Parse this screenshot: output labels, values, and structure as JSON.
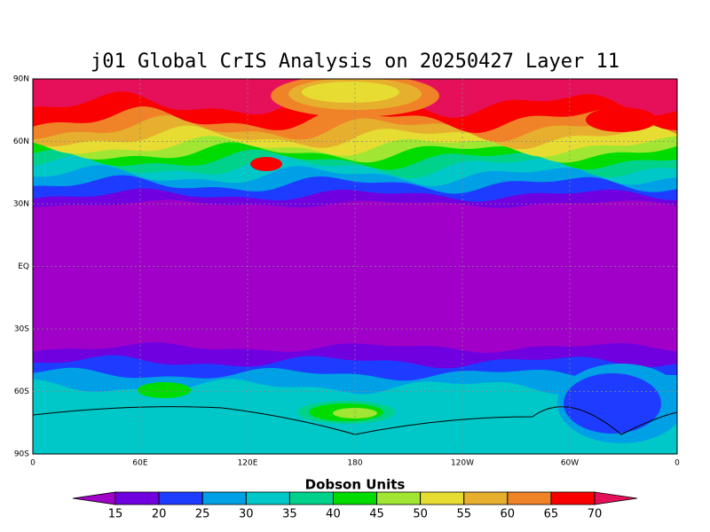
{
  "title": "j01 Global CrIS Analysis on 20250427 Layer 11",
  "lat_labels": [
    "90N",
    "60N",
    "30N",
    "EQ",
    "30S",
    "60S",
    "90S"
  ],
  "lon_labels": [
    "0",
    "60E",
    "120E",
    "180",
    "120W",
    "60W",
    "0"
  ],
  "colorbar": {
    "label": "Dobson Units",
    "ticks": [
      15,
      20,
      25,
      30,
      35,
      40,
      45,
      50,
      55,
      60,
      65,
      70
    ],
    "colors": [
      "#7000e0",
      "#1e3cff",
      "#00a0e6",
      "#00c8c8",
      "#00d28c",
      "#00dc00",
      "#a0e632",
      "#e6dc32",
      "#e6af2d",
      "#f08228",
      "#fa0000"
    ],
    "under_color": "#a000c8",
    "over_color": "#e6105a"
  }
}
